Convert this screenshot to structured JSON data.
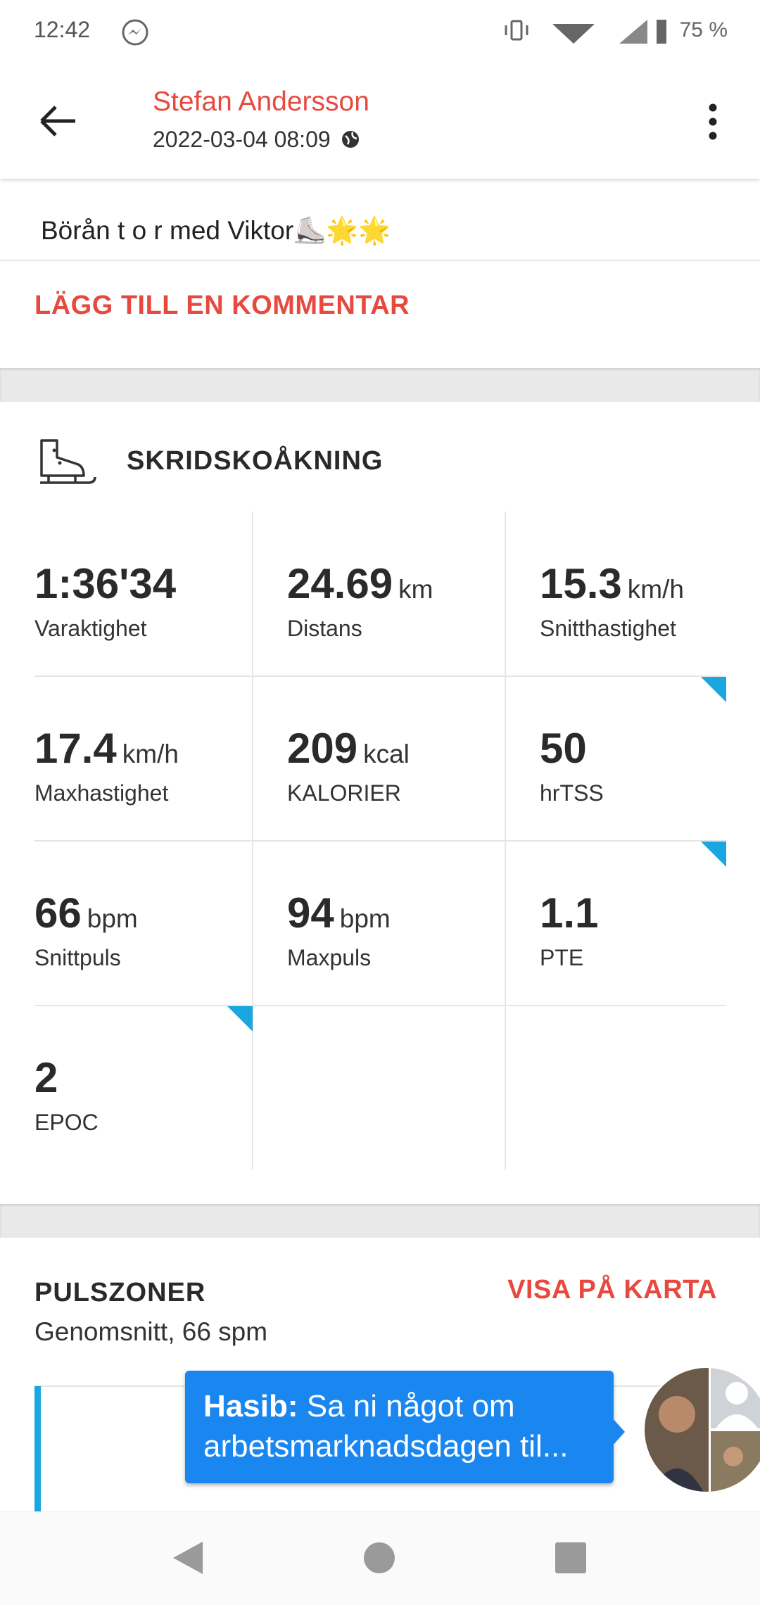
{
  "status": {
    "time": "12:42",
    "battery": "75 %"
  },
  "header": {
    "name": "Stefan Andersson",
    "date": "2022-03-04 08:09"
  },
  "description": "Börån t o r med Viktor⛸️🌟🌟",
  "add_comment": "LÄGG TILL EN KOMMENTAR",
  "activity": {
    "title": "SKRIDSKOÅKNING",
    "stats": [
      {
        "value": "1:36'34",
        "label": "Varaktighet"
      },
      {
        "value": 24.69,
        "unit": "km",
        "label": "Distans"
      },
      {
        "value": 15.3,
        "unit": "km/h",
        "label": "Snitthastighet"
      },
      {
        "value": 17.4,
        "unit": "km/h",
        "label": "Maxhastighet"
      },
      {
        "value": 209,
        "unit": "kcal",
        "label": "KALORIER"
      },
      {
        "value": 50,
        "label": "hrTSS"
      },
      {
        "value": 66,
        "unit": "bpm",
        "label": "Snittpuls"
      },
      {
        "value": 94,
        "unit": "bpm",
        "label": "Maxpuls"
      },
      {
        "value": 1.1,
        "label": "PTE"
      },
      {
        "value": 2,
        "label": "EPOC"
      }
    ]
  },
  "pulse": {
    "title": "PULSZONER",
    "subtitle": "Genomsnitt, 66 spm",
    "map_link": "VISA PÅ KARTA"
  },
  "chat": {
    "sender": "Hasib:",
    "message": "Sa ni något om arbetsmarknadsdagen til..."
  }
}
